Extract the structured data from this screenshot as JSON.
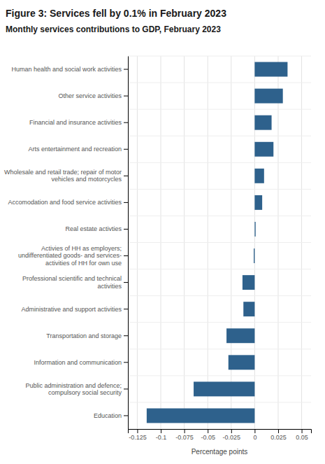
{
  "chart_data": {
    "type": "bar",
    "orientation": "horizontal",
    "title": "Figure 3: Services fell by 0.1% in February 2023",
    "subtitle": "Monthly services contributions to GDP, February 2023",
    "xlabel": "Percentage points",
    "categories": [
      "Education",
      "Public administration and defence;\ncompulsory social security",
      "Information and communication",
      "Transportation and storage",
      "Administrative and support activities",
      "Professional scientific and technical\nactivities",
      "Activies of HH as employers;\nundifferentiated goods- and services-\nactivities of HH for own use",
      "Real estate activties",
      "Accomodation and food service activities",
      "Wholesale and retail trade; repair of motor\nvehicles and motorcycles",
      "Arts entertainment and recreation",
      "Financial and insurance activities",
      "Other service activities",
      "Human health and social work activities"
    ],
    "values": [
      -0.115,
      -0.065,
      -0.028,
      -0.03,
      -0.012,
      -0.013,
      -0.001,
      0.001,
      0.008,
      0.01,
      0.02,
      0.018,
      0.03,
      0.035
    ],
    "color": "#2E618C",
    "xlim": [
      -0.135,
      0.06
    ],
    "xticks": [
      -0.125,
      -0.1,
      -0.075,
      -0.05,
      -0.025,
      0,
      0.025,
      0.05
    ],
    "grid": true
  }
}
